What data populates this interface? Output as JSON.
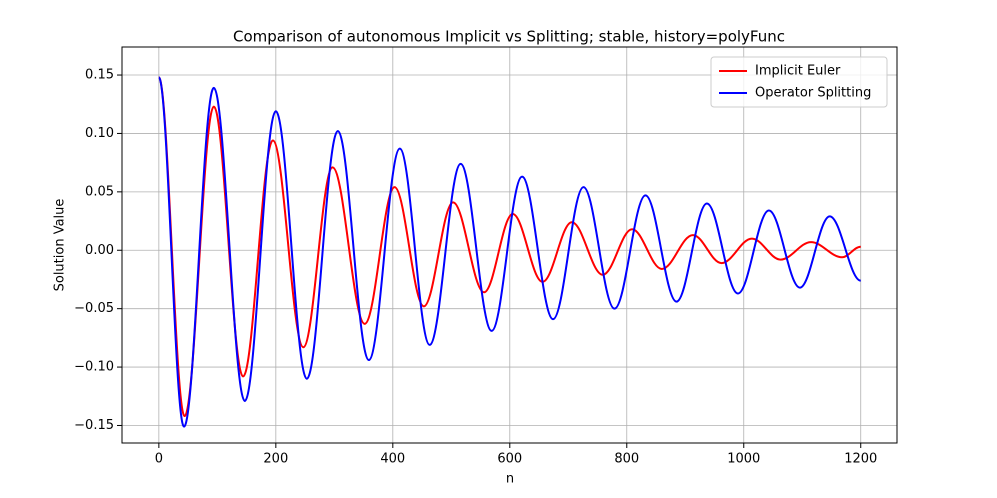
{
  "chart_data": {
    "type": "line",
    "title": "Comparison of autonomous Implicit vs Splitting; stable, history=polyFunc",
    "xlabel": "n",
    "ylabel": "Solution Value",
    "xlim": [
      -63,
      1262
    ],
    "ylim": [
      -0.165,
      0.174
    ],
    "xticks": [
      0,
      200,
      400,
      600,
      800,
      1000,
      1200
    ],
    "yticks": [
      {
        "value": -0.15,
        "label": "−0.15"
      },
      {
        "value": -0.1,
        "label": "−0.10"
      },
      {
        "value": -0.05,
        "label": "−0.05"
      },
      {
        "value": 0,
        "label": "0.00"
      },
      {
        "value": 0.05,
        "label": "0.05"
      },
      {
        "value": 0.1,
        "label": "0.10"
      },
      {
        "value": 0.15,
        "label": "0.15"
      }
    ],
    "grid": true,
    "legend": "upper right",
    "series": [
      {
        "name": "Implicit Euler",
        "color": "#ff0000",
        "x": [
          0,
          44,
          94,
          144,
          195,
          247,
          297,
          352,
          403,
          453,
          503,
          556,
          605,
          656,
          706,
          759,
          809,
          860,
          913,
          962,
          1014,
          1063,
          1115,
          1168,
          1200
        ],
        "values": [
          0.148,
          -0.142,
          0.123,
          -0.108,
          0.094,
          -0.083,
          0.071,
          -0.063,
          0.054,
          -0.048,
          0.041,
          -0.036,
          0.031,
          -0.027,
          0.024,
          -0.021,
          0.018,
          -0.016,
          0.013,
          -0.011,
          0.01,
          -0.008,
          0.007,
          -0.006,
          0.003
        ]
      },
      {
        "name": "Operator Splitting",
        "color": "#0000ff",
        "x": [
          0,
          43,
          94,
          147,
          200,
          253,
          306,
          359,
          412,
          463,
          516,
          569,
          621,
          674,
          726,
          779,
          832,
          885,
          937,
          990,
          1043,
          1096,
          1147,
          1200
        ],
        "values": [
          0.148,
          -0.151,
          0.139,
          -0.129,
          0.119,
          -0.11,
          0.102,
          -0.094,
          0.087,
          -0.081,
          0.074,
          -0.069,
          0.063,
          -0.059,
          0.054,
          -0.05,
          0.047,
          -0.044,
          0.04,
          -0.037,
          0.034,
          -0.032,
          0.029,
          -0.026
        ]
      }
    ]
  }
}
